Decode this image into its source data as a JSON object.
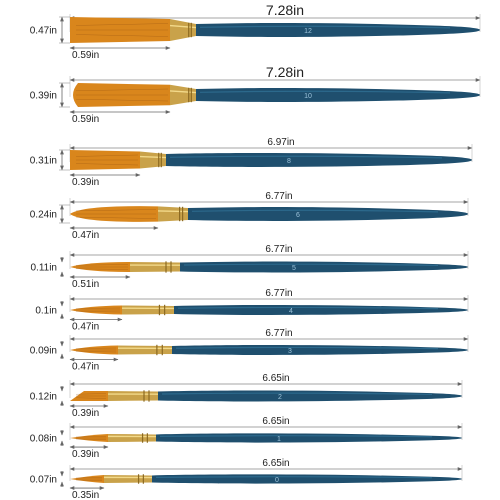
{
  "colors": {
    "handle": "#1f4f6e",
    "handle_highlight": "#2f6f93",
    "ferrule": "#c9a24a",
    "ferrule_shine": "#f2d98a",
    "bristle": "#d9861c",
    "bristle_tip": "#8a4a10",
    "dimension_line": "#888888"
  },
  "brushes": [
    {
      "length": "7.28in",
      "head_width": "0.47in",
      "head_length": "0.59in",
      "shape": "flat",
      "imprint": "12"
    },
    {
      "length": "7.28in",
      "head_width": "0.39in",
      "head_length": "0.59in",
      "shape": "filbert",
      "imprint": "10"
    },
    {
      "length": "6.97in",
      "head_width": "0.31in",
      "head_length": "0.39in",
      "shape": "flat",
      "imprint": "8"
    },
    {
      "length": "6.77in",
      "head_width": "0.24in",
      "head_length": "0.47in",
      "shape": "round",
      "imprint": "6"
    },
    {
      "length": "6.77in",
      "head_width": "0.11in",
      "head_length": "0.51in",
      "shape": "pointed",
      "imprint": "5"
    },
    {
      "length": "6.77in",
      "head_width": "0.1in",
      "head_length": "0.47in",
      "shape": "pointed",
      "imprint": "4"
    },
    {
      "length": "6.77in",
      "head_width": "0.09in",
      "head_length": "0.47in",
      "shape": "pointed",
      "imprint": "3"
    },
    {
      "length": "6.65in",
      "head_width": "0.12in",
      "head_length": "0.39in",
      "shape": "angled",
      "imprint": "2"
    },
    {
      "length": "6.65in",
      "head_width": "0.08in",
      "head_length": "0.39in",
      "shape": "pointed",
      "imprint": "1"
    },
    {
      "length": "6.65in",
      "head_width": "0.07in",
      "head_length": "0.35in",
      "shape": "pointed",
      "imprint": "0"
    }
  ]
}
